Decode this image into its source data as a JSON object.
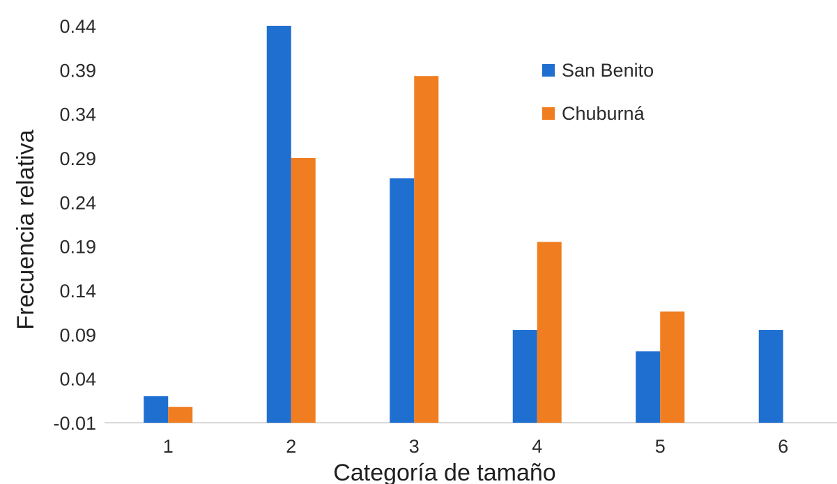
{
  "chart_data": {
    "type": "bar",
    "title": "",
    "xlabel": "Categoría de tamaño",
    "ylabel": "Frecuencia relativa",
    "categories": [
      "1",
      "2",
      "3",
      "4",
      "5",
      "6"
    ],
    "series": [
      {
        "name": "San Benito",
        "color": "#1f6fd1",
        "values": [
          0.02,
          0.44,
          0.267,
          0.095,
          0.071,
          0.095
        ]
      },
      {
        "name": "Chuburná",
        "color": "#f07d1f",
        "values": [
          0.008,
          0.29,
          0.383,
          0.195,
          0.116,
          null
        ]
      }
    ],
    "ylim": [
      -0.01,
      0.44
    ],
    "yticks": [
      "0.44",
      "0.39",
      "0.34",
      "0.29",
      "0.24",
      "0.19",
      "0.14",
      "0.09",
      "0.04",
      "-0.01"
    ],
    "ytick_values": [
      0.44,
      0.39,
      0.34,
      0.29,
      0.24,
      0.19,
      0.14,
      0.09,
      0.04,
      -0.01
    ],
    "grid": false,
    "legend_position": "top-right"
  }
}
